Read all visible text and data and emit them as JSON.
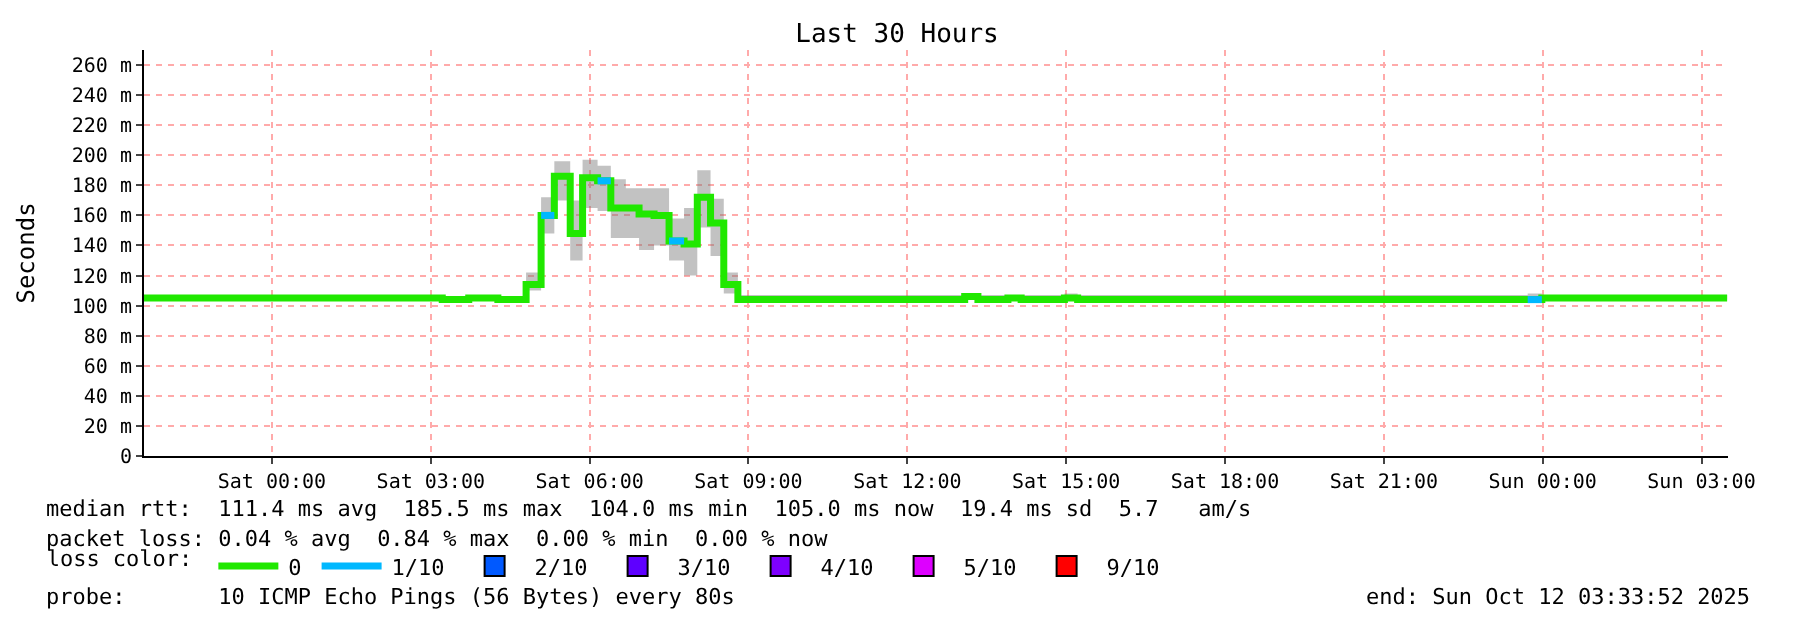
{
  "chart_data": {
    "type": "step",
    "title": "Last 30 Hours",
    "ylabel": "Seconds",
    "x": [
      "2025-10-10T21:35",
      "2025-10-11T03:13",
      "2025-10-11T03:43",
      "2025-10-11T04:16",
      "2025-10-11T04:48",
      "2025-10-11T05:05",
      "2025-10-11T05:20",
      "2025-10-11T05:38",
      "2025-10-11T05:52",
      "2025-10-11T06:09",
      "2025-10-11T06:24",
      "2025-10-11T06:41",
      "2025-10-11T06:56",
      "2025-10-11T07:13",
      "2025-10-11T07:30",
      "2025-10-11T07:47",
      "2025-10-11T08:02",
      "2025-10-11T08:17",
      "2025-10-11T08:32",
      "2025-10-11T08:48",
      "2025-10-11T13:05",
      "2025-10-11T13:20",
      "2025-10-11T13:54",
      "2025-10-11T14:09",
      "2025-10-11T14:58",
      "2025-10-11T15:13",
      "2025-10-11T23:43",
      "2025-10-11T23:59",
      "2025-10-12T03:29"
    ],
    "series": [
      {
        "name": "0",
        "color": "#20e800",
        "values": [
          105,
          104,
          105,
          104,
          114,
          160,
          186,
          148,
          185,
          183,
          165,
          165,
          161,
          160,
          143,
          141,
          172,
          155,
          114,
          104,
          106,
          104,
          105,
          104,
          105,
          104,
          104,
          105,
          105
        ],
        "lower": [
          104,
          103,
          104,
          103,
          110,
          148,
          170,
          130,
          165,
          163,
          145,
          145,
          137,
          140,
          130,
          120,
          152,
          133,
          108,
          103,
          104,
          103,
          104,
          103,
          104,
          103,
          103,
          104,
          104
        ],
        "upper": [
          107,
          106,
          107,
          106,
          122,
          172,
          196,
          170,
          197,
          193,
          184,
          178,
          178,
          178,
          158,
          165,
          190,
          171,
          122,
          107,
          108,
          107,
          107,
          107,
          108,
          107,
          108,
          107,
          107
        ]
      },
      {
        "name": "1/10",
        "color": "#00b8ff",
        "x": [
          "2025-10-11T05:05",
          "2025-10-11T05:20",
          "2025-10-11T05:21",
          "2025-10-11T06:09",
          "2025-10-11T06:24",
          "2025-10-11T06:25",
          "2025-10-11T07:30",
          "2025-10-11T07:47",
          "2025-10-11T07:48",
          "2025-10-11T23:43",
          "2025-10-11T23:59"
        ],
        "values": [
          160,
          160,
          null,
          183,
          183,
          null,
          143,
          143,
          null,
          104,
          104
        ]
      },
      {
        "name": "2/10",
        "color": "#0059ff",
        "values": [
          null,
          null,
          null,
          null,
          null,
          null,
          null,
          null,
          null,
          null,
          null,
          null,
          null,
          null,
          null,
          null,
          null,
          null,
          null,
          null,
          null,
          null,
          null,
          null,
          null,
          null,
          null,
          null,
          null
        ]
      },
      {
        "name": "3/10",
        "color": "#5e00ff",
        "values": [
          null,
          null,
          null,
          null,
          null,
          null,
          null,
          null,
          null,
          null,
          null,
          null,
          null,
          null,
          null,
          null,
          null,
          null,
          null,
          null,
          null,
          null,
          null,
          null,
          null,
          null,
          null,
          null,
          null
        ]
      },
      {
        "name": "4/10",
        "color": "#7e00ff",
        "values": [
          null,
          null,
          null,
          null,
          null,
          null,
          null,
          null,
          null,
          null,
          null,
          null,
          null,
          null,
          null,
          null,
          null,
          null,
          null,
          null,
          null,
          null,
          null,
          null,
          null,
          null,
          null,
          null,
          null
        ]
      },
      {
        "name": "5/10",
        "color": "#dd00ff",
        "values": [
          null,
          null,
          null,
          null,
          null,
          null,
          null,
          null,
          null,
          null,
          null,
          null,
          null,
          null,
          null,
          null,
          null,
          null,
          null,
          null,
          null,
          null,
          null,
          null,
          null,
          null,
          null,
          null,
          null
        ]
      },
      {
        "name": "9/10",
        "color": "#ff0000",
        "values": [
          null,
          null,
          null,
          null,
          null,
          null,
          null,
          null,
          null,
          null,
          null,
          null,
          null,
          null,
          null,
          null,
          null,
          null,
          null,
          null,
          null,
          null,
          null,
          null,
          null,
          null,
          null,
          null,
          null
        ]
      }
    ],
    "legend_title": "loss color:",
    "legend": "bottom left",
    "xlim": [
      "2025-10-10T21:35",
      "2025-10-12T03:30"
    ],
    "xticks": [
      {
        "value": "2025-10-11T00:00",
        "label": "Sat 00:00"
      },
      {
        "value": "2025-10-11T03:00",
        "label": "Sat 03:00"
      },
      {
        "value": "2025-10-11T06:00",
        "label": "Sat 06:00"
      },
      {
        "value": "2025-10-11T09:00",
        "label": "Sat 09:00"
      },
      {
        "value": "2025-10-11T12:00",
        "label": "Sat 12:00"
      },
      {
        "value": "2025-10-11T15:00",
        "label": "Sat 15:00"
      },
      {
        "value": "2025-10-11T18:00",
        "label": "Sat 18:00"
      },
      {
        "value": "2025-10-11T21:00",
        "label": "Sat 21:00"
      },
      {
        "value": "2025-10-12T00:00",
        "label": "Sun 00:00"
      },
      {
        "value": "2025-10-12T03:00",
        "label": "Sun 03:00"
      }
    ],
    "ylim": [
      0,
      270
    ],
    "yticks": [
      0,
      {
        "value": 20,
        "label": "20 m"
      },
      {
        "value": 40,
        "label": "40 m"
      },
      {
        "value": 60,
        "label": "60 m"
      },
      {
        "value": 80,
        "label": "80 m"
      },
      {
        "value": 100,
        "label": "100 m"
      },
      {
        "value": 120,
        "label": "120 m"
      },
      {
        "value": 140,
        "label": "140 m"
      },
      {
        "value": 160,
        "label": "160 m"
      },
      {
        "value": 180,
        "label": "180 m"
      },
      {
        "value": 200,
        "label": "200 m"
      },
      {
        "value": 220,
        "label": "220 m"
      },
      {
        "value": 240,
        "label": "240 m"
      },
      {
        "value": 260,
        "label": "260 m"
      }
    ],
    "grid": true,
    "annotations": [
      "median rtt:  111.4 ms avg  185.5 ms max  104.0 ms min  105.0 ms now  19.4 ms sd  5.7   am/s",
      "packet loss: 0.04 % avg  0.84 % max  0.00 % min  0.00 % now",
      "probe:       10 ICMP Echo Pings (56 Bytes) every 80s",
      "end: Sun Oct 12 03:33:52 2025"
    ]
  }
}
